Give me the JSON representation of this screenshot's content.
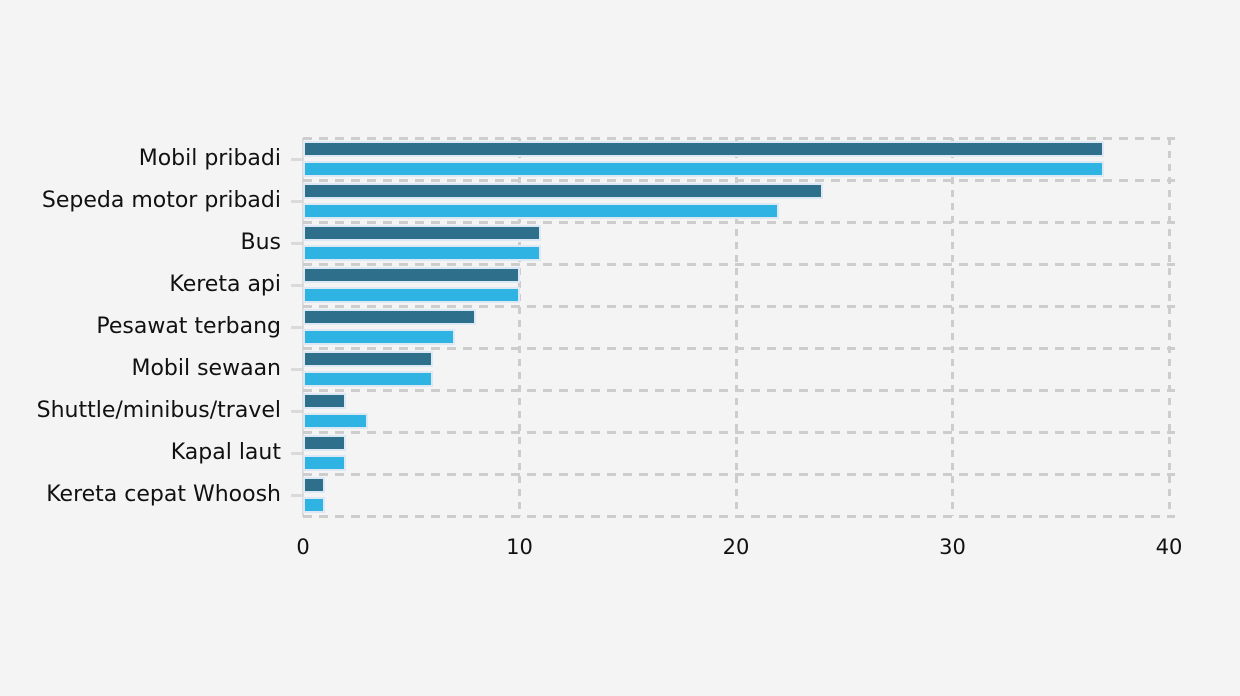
{
  "chart": {
    "background_color": "#F4F4F5",
    "text_color": "#111111",
    "grid_color": "#CDCDCD",
    "axis_color": "#DADADA",
    "bar_edge_color": "#DCE8F3"
  },
  "chart_data": {
    "type": "bar",
    "orientation": "horizontal",
    "title": "",
    "xlabel": "",
    "ylabel": "",
    "xlim": [
      0,
      40
    ],
    "x_ticks": [
      0,
      10,
      20,
      30,
      40
    ],
    "grid": "dashed",
    "legend_position": "none",
    "categories": [
      "Mobil pribadi",
      "Sepeda motor pribadi",
      "Bus",
      "Kereta api",
      "Pesawat terbang",
      "Mobil sewaan",
      "Shuttle/minibus/travel",
      "Kapal laut",
      "Kereta cepat Whoosh"
    ],
    "series": [
      {
        "name": "series-1-dark-teal",
        "color": "#2E6F8C",
        "values": [
          37,
          24,
          11,
          10,
          8,
          6,
          2,
          2,
          1
        ]
      },
      {
        "name": "series-2-light-blue",
        "color": "#2FB3E3",
        "values": [
          37,
          22,
          11,
          10,
          7,
          6,
          3,
          2,
          1
        ]
      }
    ]
  }
}
